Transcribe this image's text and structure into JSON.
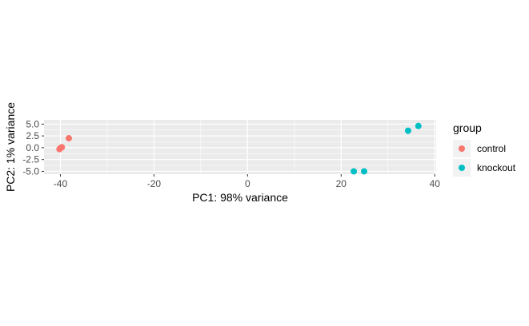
{
  "chart_data": {
    "type": "scatter",
    "title": "",
    "xlabel": "PC1: 98% variance",
    "ylabel": "PC2: 1% variance",
    "xlim": [
      -43.5,
      40.3
    ],
    "ylim": [
      -5.6,
      5.9
    ],
    "xticks": [
      -40,
      -20,
      0,
      20,
      40
    ],
    "xtick_labels": [
      "-40",
      "-20",
      "0",
      "20",
      "40"
    ],
    "yticks": [
      -5,
      -2.5,
      0,
      2.5,
      5
    ],
    "ytick_labels": [
      "-5.0",
      "-2.5",
      "0.0",
      "2.5",
      "5.0"
    ],
    "grid": true,
    "legend": {
      "title": "group",
      "position": "right"
    },
    "series": [
      {
        "name": "control",
        "color": "#F8766D",
        "points": [
          {
            "x": -38.2,
            "y": 2.0
          },
          {
            "x": -40.0,
            "y": -0.1
          },
          {
            "x": -39.7,
            "y": 0.1
          },
          {
            "x": -40.2,
            "y": -0.3
          }
        ]
      },
      {
        "name": "knockout",
        "color": "#00BFC4",
        "points": [
          {
            "x": 36.5,
            "y": 4.6
          },
          {
            "x": 34.3,
            "y": 3.6
          },
          {
            "x": 22.7,
            "y": -5.0
          },
          {
            "x": 24.9,
            "y": -5.0
          }
        ]
      }
    ],
    "panel_background": "#EBEBEB",
    "gridline_color": "#FFFFFF"
  }
}
